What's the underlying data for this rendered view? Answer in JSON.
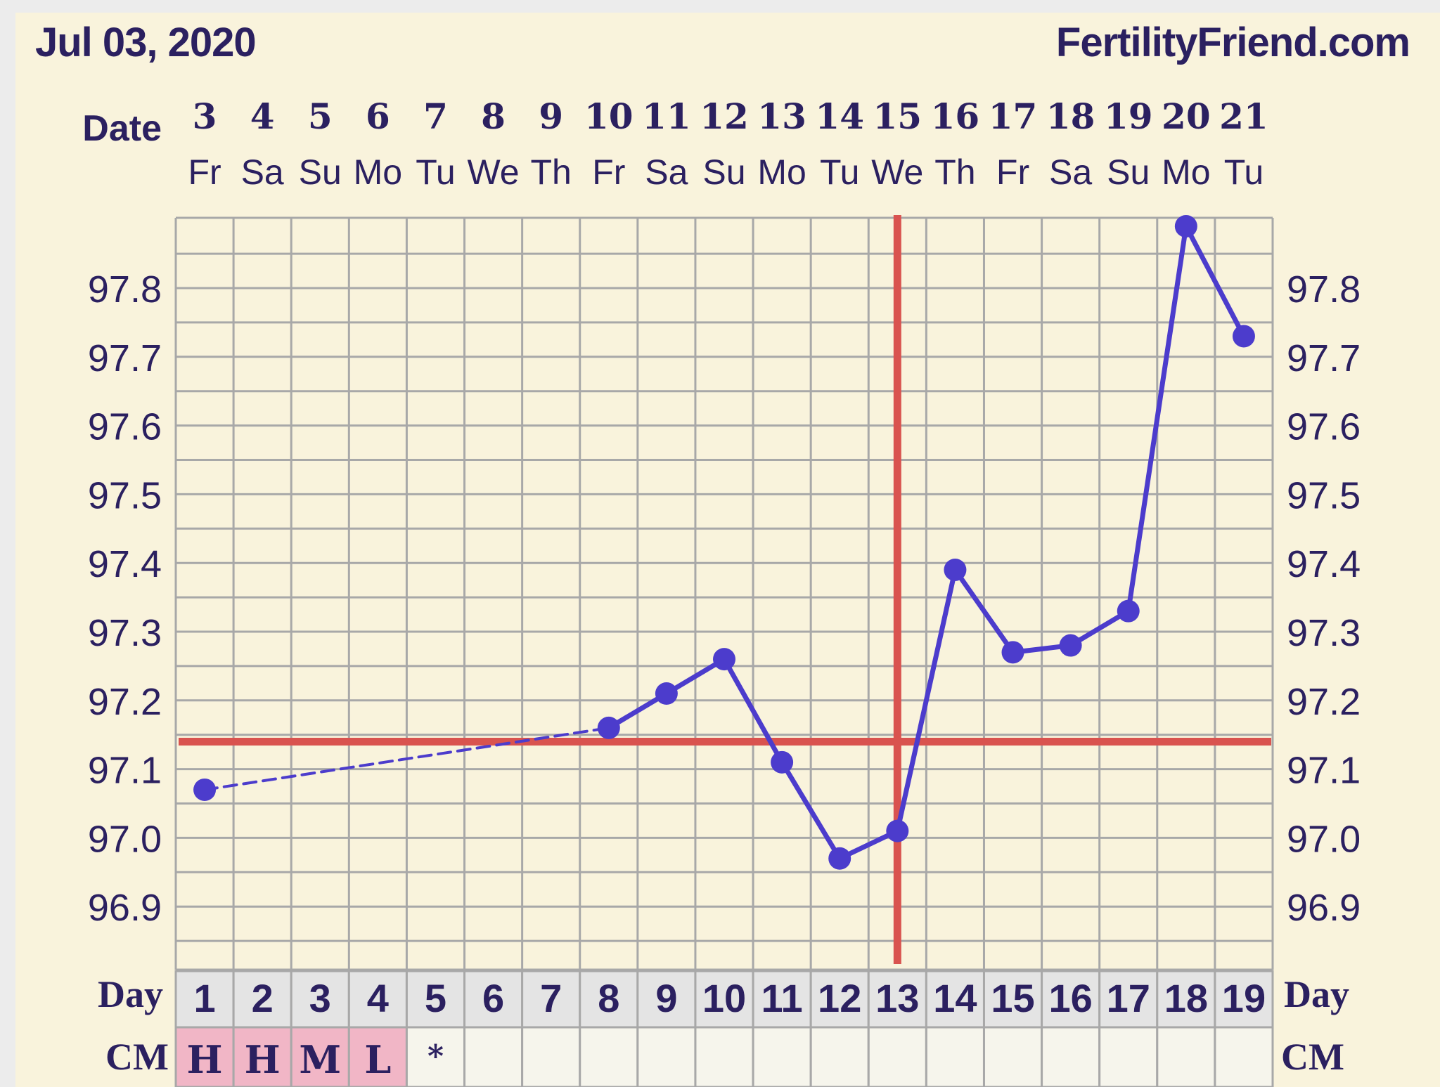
{
  "header": {
    "date_title": "Jul 03, 2020",
    "brand": "FertilityFriend.com"
  },
  "labels": {
    "date_row": "Date",
    "day_row": "Day",
    "cm_row": "CM"
  },
  "colors": {
    "background": "#f9f3dc",
    "text": "#2b2060",
    "line": "#4c3ccc",
    "reference": "#d9534f",
    "grid": "#a8a8a8",
    "day_cell": "#e4e4e4",
    "cm_cell": "#f6f5ec",
    "cm_highlight": "#f1b6c6"
  },
  "chart_data": {
    "type": "line",
    "dates": [
      "3",
      "4",
      "5",
      "6",
      "7",
      "8",
      "9",
      "10",
      "11",
      "12",
      "13",
      "14",
      "15",
      "16",
      "17",
      "18",
      "19",
      "20",
      "21"
    ],
    "weekdays": [
      "Fr",
      "Sa",
      "Su",
      "Mo",
      "Tu",
      "We",
      "Th",
      "Fr",
      "Sa",
      "Su",
      "Mo",
      "Tu",
      "We",
      "Th",
      "Fr",
      "Sa",
      "Su",
      "Mo",
      "Tu"
    ],
    "cycle_days": [
      "1",
      "2",
      "3",
      "4",
      "5",
      "6",
      "7",
      "8",
      "9",
      "10",
      "11",
      "12",
      "13",
      "14",
      "15",
      "16",
      "17",
      "18",
      "19"
    ],
    "cm_values": [
      "H",
      "H",
      "M",
      "L",
      "*",
      "",
      "",
      "",
      "",
      "",
      "",
      "",
      "",
      "",
      "",
      "",
      "",
      "",
      ""
    ],
    "y_ticks": [
      "96.9",
      "97.0",
      "97.1",
      "97.2",
      "97.3",
      "97.4",
      "97.5",
      "97.6",
      "97.7",
      "97.8"
    ],
    "ylim": [
      96.8,
      97.89
    ],
    "series": [
      {
        "values": [
          97.07,
          null,
          null,
          null,
          null,
          null,
          null,
          97.16,
          97.21,
          97.26,
          97.11,
          96.97,
          97.01,
          97.39,
          97.27,
          97.28,
          97.33,
          97.89,
          97.73
        ]
      }
    ],
    "coverline": 97.14,
    "ovulation_day": 13,
    "grid": true
  }
}
